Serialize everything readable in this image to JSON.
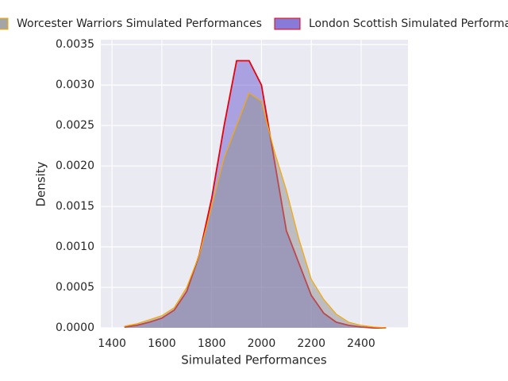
{
  "chart_data": {
    "type": "area",
    "x_label": "Simulated Performances",
    "y_label": "Density",
    "x": [
      1450,
      1500,
      1550,
      1600,
      1650,
      1700,
      1750,
      1800,
      1850,
      1900,
      1950,
      2000,
      2050,
      2100,
      2150,
      2200,
      2250,
      2300,
      2350,
      2400,
      2450,
      2500
    ],
    "series": [
      {
        "name": "Worcester Warriors Simulated Performances",
        "color": "#f5a800",
        "fill": "#8f8f8f",
        "values": [
          2e-05,
          5e-05,
          0.0001,
          0.00015,
          0.00025,
          0.0005,
          0.0009,
          0.0015,
          0.0021,
          0.0025,
          0.0029,
          0.0028,
          0.0022,
          0.0017,
          0.0011,
          0.0006,
          0.00035,
          0.00017,
          7e-05,
          3e-05,
          1e-05,
          0
        ]
      },
      {
        "name": "London Scottish Simulated Performances",
        "color": "#e8000b",
        "fill": "#6a5acd",
        "values": [
          1e-05,
          3e-05,
          7e-05,
          0.00012,
          0.00022,
          0.00045,
          0.0009,
          0.0016,
          0.0025,
          0.0033,
          0.0033,
          0.003,
          0.0021,
          0.0012,
          0.0008,
          0.0004,
          0.00018,
          7e-05,
          3e-05,
          1e-05,
          0,
          0
        ]
      }
    ],
    "xlim": [
      1355,
      2588
    ],
    "xticks": [
      1400,
      1600,
      1800,
      2000,
      2200,
      2400
    ],
    "ylim": [
      0,
      0.00356
    ],
    "yticks": [
      {
        "value": 0,
        "label": "0.0000"
      },
      {
        "value": 0.0005,
        "label": "0.0005"
      },
      {
        "value": 0.001,
        "label": "0.0010"
      },
      {
        "value": 0.0015,
        "label": "0.0015"
      },
      {
        "value": 0.002,
        "label": "0.0020"
      },
      {
        "value": 0.0025,
        "label": "0.0025"
      },
      {
        "value": 0.003,
        "label": "0.0030"
      },
      {
        "value": 0.0035,
        "label": "0.0035"
      }
    ],
    "grid": true,
    "legend": "top"
  }
}
